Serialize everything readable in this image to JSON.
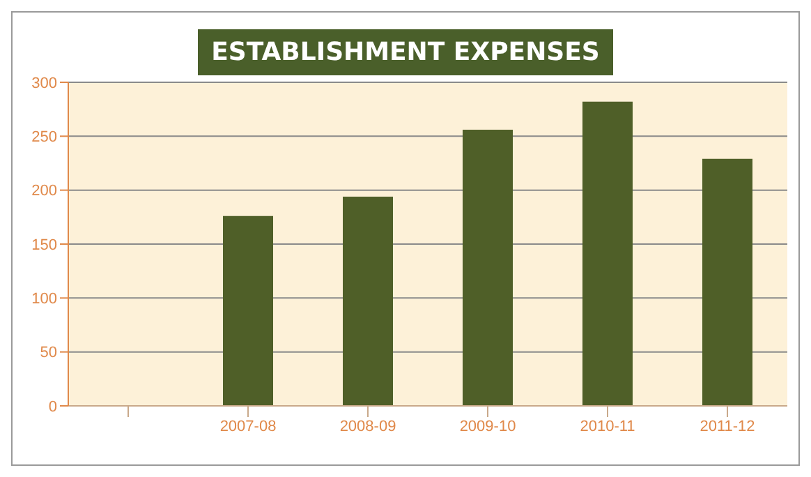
{
  "chart_data": {
    "type": "bar",
    "title": "ESTABLISHMENT EXPENSES",
    "categories": [
      null,
      "2007-08",
      "2008-09",
      "2009-10",
      "2010-11",
      "2011-12"
    ],
    "values": [
      null,
      176,
      194,
      256,
      282,
      229
    ],
    "color": "#4f5f28",
    "ylim": [
      0,
      300
    ],
    "yticks": [
      0,
      50,
      100,
      150,
      200,
      250,
      300
    ],
    "grid": "y"
  }
}
